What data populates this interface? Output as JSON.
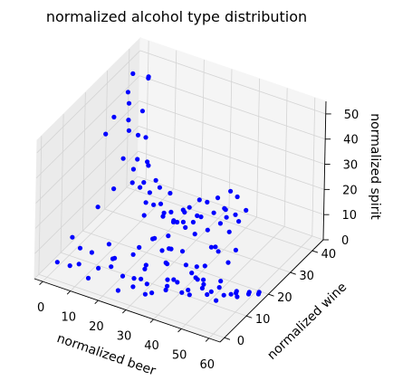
{
  "chart_data": {
    "type": "scatter3d",
    "title": "normalized alcohol type distribution",
    "xlabel": "normalized beer",
    "ylabel": "normalized wine",
    "zlabel": "normalized spirit",
    "xlim": [
      -3,
      64
    ],
    "ylim": [
      -2,
      45
    ],
    "zlim": [
      0,
      55
    ],
    "xticks": [
      "0",
      "10",
      "20",
      "30",
      "40",
      "50",
      "60"
    ],
    "yticks": [
      "0",
      "10",
      "20",
      "30",
      "40"
    ],
    "zticks": [
      "0",
      "10",
      "20",
      "30",
      "40",
      "50"
    ],
    "grid": true,
    "marker_color": "#0000ff",
    "series": [
      {
        "x": [
          0,
          1,
          3,
          4,
          2,
          5,
          6,
          8,
          3,
          9,
          10,
          12,
          11,
          13,
          14,
          15,
          16,
          17,
          18,
          17,
          19,
          20,
          21,
          22,
          23,
          24,
          22,
          25,
          26,
          27,
          28,
          29,
          30,
          31,
          28,
          32,
          33,
          34,
          35,
          30,
          36,
          37,
          38,
          33,
          39,
          40,
          41,
          42,
          43,
          44,
          45,
          46,
          47,
          48,
          49,
          50,
          38,
          41,
          44,
          47,
          52,
          14,
          22,
          36,
          50,
          10,
          26,
          31,
          45,
          2,
          5,
          9,
          14,
          19,
          24,
          29,
          33,
          37,
          40,
          43,
          46,
          48,
          50,
          52,
          53,
          55,
          57,
          58,
          60,
          61,
          62,
          63,
          7,
          15,
          35,
          42,
          28,
          34,
          46,
          51,
          39,
          18,
          25,
          12,
          44,
          33,
          49,
          56,
          21,
          30,
          36,
          42,
          48,
          54,
          27,
          38,
          45,
          53,
          16,
          24,
          32,
          40,
          47,
          8,
          59,
          41,
          35,
          29,
          23
        ],
        "y": [
          38,
          44,
          32,
          40,
          27,
          30,
          35,
          26,
          22,
          25,
          28,
          29,
          20,
          24,
          21,
          26,
          18,
          24,
          19,
          22,
          25,
          21,
          18,
          23,
          19,
          21,
          16,
          24,
          20,
          22,
          17,
          25,
          21,
          18,
          22,
          24,
          20,
          26,
          22,
          17,
          27,
          23,
          19,
          21,
          28,
          25,
          21,
          30,
          26,
          23,
          24,
          28,
          26,
          22,
          25,
          27,
          14,
          16,
          19,
          17,
          20,
          12,
          14,
          16,
          18,
          10,
          15,
          13,
          21,
          2,
          4,
          3,
          1,
          5,
          2,
          6,
          3,
          8,
          4,
          7,
          6,
          10,
          8,
          9,
          12,
          11,
          14,
          13,
          16,
          15,
          18,
          17,
          6,
          9,
          12,
          15,
          9,
          11,
          13,
          14,
          10,
          7,
          8,
          5,
          12,
          6,
          11,
          13,
          4,
          7,
          9,
          10,
          11,
          14,
          5,
          6,
          8,
          10,
          3,
          4,
          5,
          7,
          9,
          1,
          12,
          14,
          11,
          12,
          10
        ],
        "z": [
          48,
          42,
          47,
          46,
          41,
          45,
          38,
          43,
          39,
          40,
          36,
          35,
          34,
          31,
          30,
          29,
          28,
          30,
          26,
          25,
          24,
          23,
          22,
          24,
          21,
          20,
          19,
          22,
          18,
          17,
          20,
          16,
          15,
          18,
          14,
          19,
          17,
          21,
          16,
          13,
          20,
          18,
          15,
          14,
          22,
          19,
          16,
          24,
          21,
          18,
          23,
          25,
          20,
          17,
          19,
          22,
          28,
          26,
          12,
          15,
          13,
          30,
          8,
          10,
          27,
          23,
          12,
          11,
          9,
          5,
          3,
          6,
          4,
          7,
          2,
          5,
          3,
          6,
          8,
          4,
          7,
          5,
          9,
          6,
          8,
          4,
          3,
          5,
          2,
          4,
          1,
          3,
          9,
          11,
          14,
          7,
          6,
          9,
          5,
          3,
          4,
          8,
          2,
          10,
          6,
          1,
          2,
          3,
          12,
          10,
          11,
          12,
          13,
          14,
          2,
          4,
          3,
          2,
          7,
          6,
          5,
          8,
          9,
          18,
          4,
          5,
          15,
          16,
          9
        ]
      }
    ]
  }
}
